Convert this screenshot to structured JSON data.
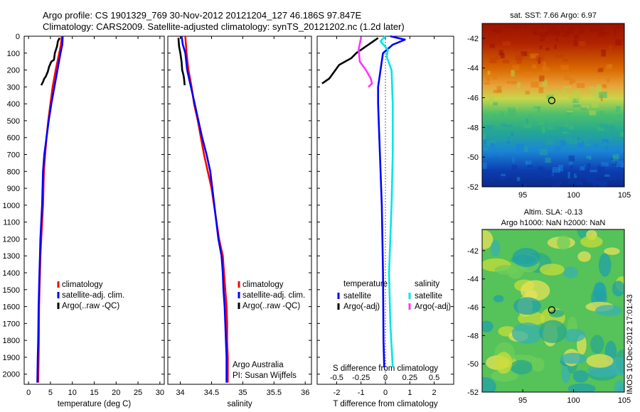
{
  "header": {
    "line1": "Argo profile: CS 1901329_769 30-Nov-2012 20121204_127 46.186S 97.847E",
    "line2": "Climatology: CARS2009. Satellite-adjusted climatology: synTS_20121202.nc (1.2d later)"
  },
  "credit": "Argo Australia",
  "pi": "PI: Susan Wijffels",
  "stamp": "IMOS 10-Dec-2012 17:01:43",
  "colors": {
    "climatology": "#ff0000",
    "satellite": "#0000ff",
    "argo": "#000000",
    "sat_salinity": "#00e5e5",
    "argo_salinity": "#ff33ff"
  },
  "chart_data": [
    {
      "type": "line",
      "id": "temperature",
      "xlabel": "temperature (deg C)",
      "ylabel": "",
      "xlim": [
        -1,
        31
      ],
      "ylim": [
        2060,
        0
      ],
      "xticks": [
        "0",
        "5",
        "10",
        "15",
        "20",
        "25",
        "30"
      ],
      "yticks": [
        "0",
        "100",
        "200",
        "300",
        "400",
        "500",
        "600",
        "700",
        "800",
        "900",
        "1000",
        "1100",
        "1200",
        "1300",
        "1400",
        "1500",
        "1600",
        "1700",
        "1800",
        "1900",
        "2000"
      ],
      "legend": [
        "climatology",
        "satellite-adj. clim.",
        "Argo(..raw -QC)"
      ],
      "series": [
        {
          "name": "climatology",
          "color": "#ff0000",
          "x": [
            7.6,
            7.4,
            7.0,
            6.2,
            5.5,
            5.0,
            4.5,
            4.1,
            3.8,
            3.5,
            3.3,
            3.1,
            2.9,
            2.7,
            2.6,
            2.5,
            2.4,
            2.35,
            2.3,
            2.2
          ],
          "y": [
            0,
            50,
            100,
            200,
            300,
            400,
            500,
            600,
            700,
            800,
            1000,
            1100,
            1200,
            1300,
            1400,
            1500,
            1600,
            1800,
            1900,
            2050
          ]
        },
        {
          "name": "satellite-adj. clim.",
          "color": "#0000ff",
          "x": [
            7.8,
            7.7,
            7.3,
            6.6,
            5.9,
            5.2,
            4.6,
            4.1,
            3.6,
            3.3,
            3.1,
            2.9,
            2.7,
            2.6,
            2.5,
            2.4,
            2.3,
            2.2,
            2.1,
            2.0
          ],
          "y": [
            0,
            50,
            100,
            200,
            300,
            400,
            500,
            600,
            700,
            800,
            1000,
            1100,
            1200,
            1300,
            1400,
            1500,
            1600,
            1800,
            1900,
            2050
          ]
        },
        {
          "name": "Argo(..raw -QC)",
          "color": "#000000",
          "x": [
            7.1,
            6.7,
            6.5,
            6.0,
            5.8,
            5.2,
            4.7,
            4.4,
            3.9,
            3.6,
            3.3,
            2.9
          ],
          "y": [
            10,
            30,
            60,
            100,
            140,
            150,
            180,
            210,
            240,
            250,
            270,
            290
          ]
        }
      ]
    },
    {
      "type": "line",
      "id": "salinity",
      "xlabel": "salinity",
      "xlim": [
        33.8,
        36.1
      ],
      "ylim": [
        2060,
        0
      ],
      "xticks": [
        "34",
        "34.5",
        "35",
        "35.5",
        "36"
      ],
      "legend": [
        "climatology",
        "satellite-adj. clim.",
        "Argo(..raw -QC)"
      ],
      "series": [
        {
          "name": "climatology",
          "color": "#ff0000",
          "x": [
            34.08,
            34.1,
            34.13,
            34.18,
            34.22,
            34.28,
            34.33,
            34.38,
            34.44,
            34.5,
            34.62,
            34.68,
            34.7,
            34.72,
            34.74,
            34.75,
            34.75,
            34.76,
            34.76
          ],
          "y": [
            0,
            100,
            200,
            300,
            400,
            500,
            600,
            700,
            800,
            900,
            1200,
            1300,
            1400,
            1500,
            1600,
            1700,
            1800,
            1900,
            2050
          ]
        },
        {
          "name": "satellite-adj. clim.",
          "color": "#0000ff",
          "x": [
            34.02,
            34.04,
            34.08,
            34.11,
            34.17,
            34.23,
            34.29,
            34.35,
            34.42,
            34.48,
            34.61,
            34.66,
            34.68,
            34.69,
            34.71,
            34.72,
            34.73,
            34.74,
            34.74
          ],
          "y": [
            0,
            50,
            100,
            200,
            300,
            400,
            500,
            600,
            700,
            800,
            1200,
            1300,
            1400,
            1500,
            1600,
            1700,
            1800,
            1900,
            2050
          ]
        },
        {
          "name": "Argo(..raw -QC)",
          "color": "#000000",
          "x": [
            33.97,
            33.98,
            34.0,
            34.02,
            34.03,
            34.05,
            34.06,
            34.07
          ],
          "y": [
            10,
            60,
            100,
            150,
            200,
            230,
            250,
            290
          ]
        }
      ]
    },
    {
      "type": "line",
      "id": "difference",
      "xlabel": "T difference from climatology",
      "top_label": "S difference from climatology",
      "xlim": [
        -2.8,
        2.8
      ],
      "ylim": [
        2060,
        0
      ],
      "xticks": [
        "-2",
        "-1",
        "0",
        "1",
        "2"
      ],
      "sticks": [
        "-0.5",
        "-0.25",
        "0",
        "0.25",
        "0.5"
      ],
      "legend_temperature_title": "temperature",
      "legend_salinity_title": "salinity",
      "legend": [
        "satellite",
        "Argo(-adj)",
        "satellite",
        "Argo(-adj)"
      ],
      "series": [
        {
          "name": "satellite",
          "quantity": "temperature",
          "color": "#0000ff",
          "x": [
            0.2,
            0.8,
            0.3,
            -0.1,
            -0.2,
            -0.25,
            -0.3,
            -0.3,
            -0.25,
            -0.15,
            -0.1,
            -0.08,
            -0.05
          ],
          "y": [
            0,
            20,
            50,
            100,
            200,
            250,
            300,
            400,
            600,
            1000,
            1400,
            1800,
            1960
          ]
        },
        {
          "name": "Argo(-adj)",
          "quantity": "temperature",
          "color": "#000000",
          "x": [
            -0.3,
            -0.8,
            -1.2,
            -1.4,
            -1.9,
            -2.1,
            -2.3,
            -2.6
          ],
          "y": [
            10,
            60,
            100,
            130,
            170,
            210,
            250,
            280
          ]
        },
        {
          "name": "satellite",
          "quantity": "salinity",
          "color": "#00e5e5",
          "x": [
            0,
            -0.2,
            0.1,
            0.05,
            0.25,
            0.3,
            0.3,
            0.25,
            0.15,
            0.2,
            0.3
          ],
          "y": [
            0,
            30,
            80,
            120,
            200,
            400,
            700,
            1000,
            1400,
            1700,
            1960
          ]
        },
        {
          "name": "Argo(-adj)",
          "quantity": "salinity",
          "color": "#ff33ff",
          "x": [
            -1.0,
            -1.1,
            -1.05,
            -0.8,
            -0.6,
            -0.55,
            -0.7
          ],
          "y": [
            10,
            80,
            150,
            200,
            250,
            280,
            300
          ]
        }
      ]
    },
    {
      "type": "heatmap",
      "id": "sst_map",
      "title": "sat. SST: 7.66 Argo: 6.97",
      "xlim": [
        91,
        105
      ],
      "ylim": [
        -52,
        -41
      ],
      "xticks": [
        "95",
        "100",
        "105"
      ],
      "yticks": [
        "-42",
        "-44",
        "-46",
        "-48",
        "-50",
        "-52"
      ],
      "marker": {
        "lon": 97.85,
        "lat": -46.19
      }
    },
    {
      "type": "heatmap",
      "id": "sla_map",
      "title": "Altim. SLA: -0.13",
      "title2": "Argo h1000: NaN h2000: NaN",
      "xlim": [
        91,
        105
      ],
      "ylim": [
        -52,
        -40.5
      ],
      "xticks": [
        "95",
        "100",
        "105"
      ],
      "yticks": [
        "-42",
        "-44",
        "-46",
        "-48",
        "-50",
        "-52"
      ],
      "marker": {
        "lon": 97.85,
        "lat": -46.19
      }
    }
  ]
}
